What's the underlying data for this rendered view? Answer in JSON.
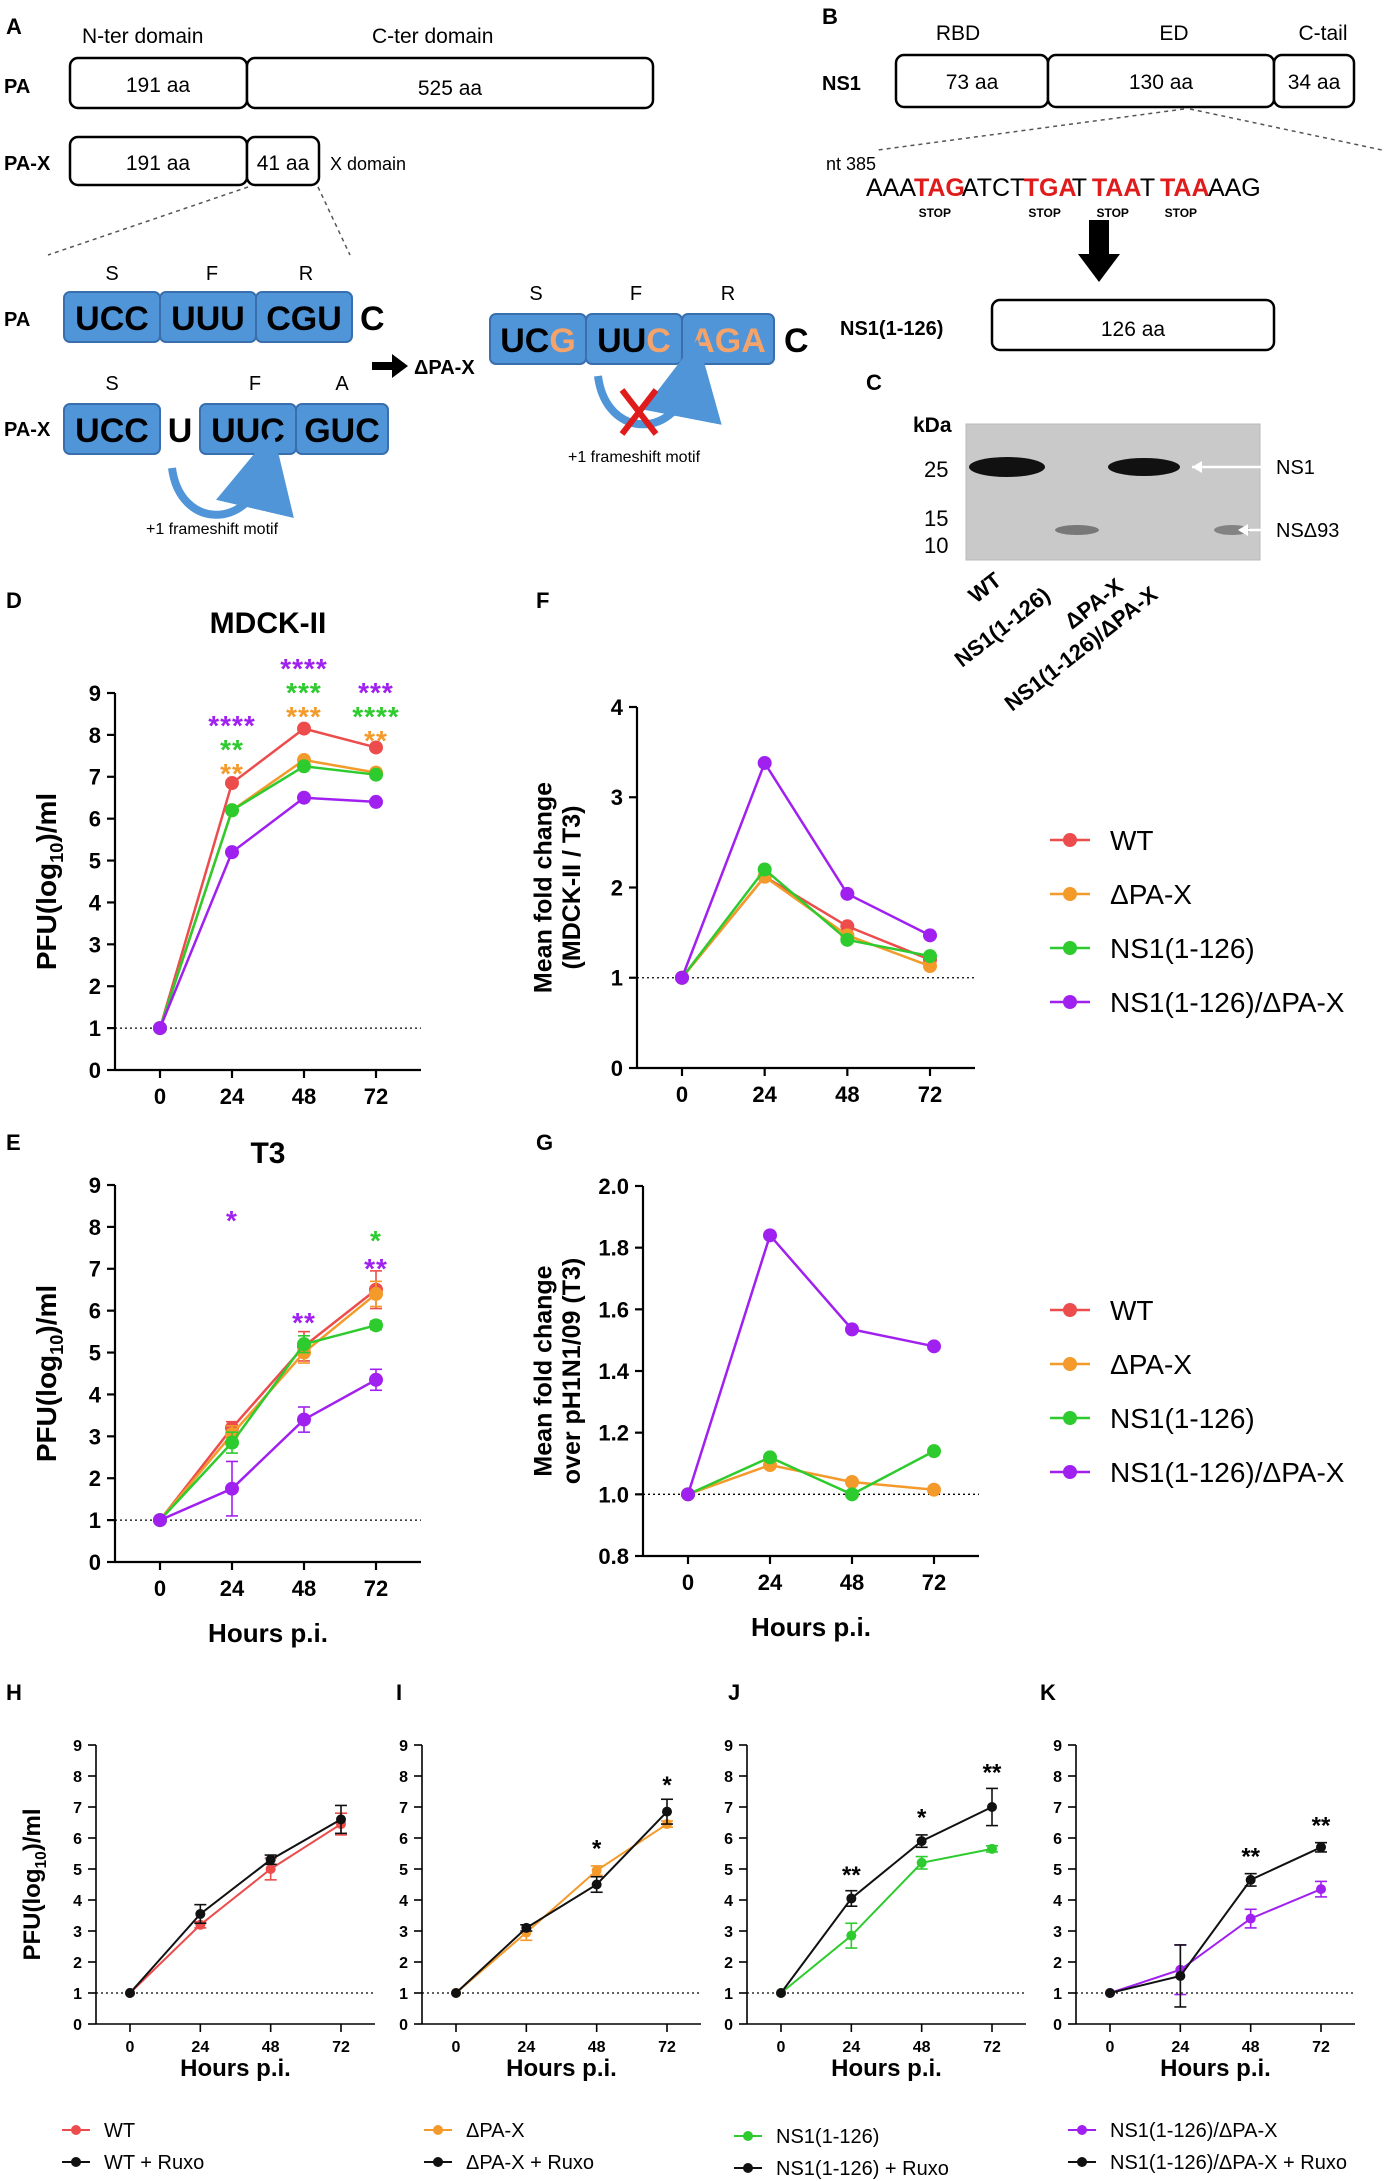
{
  "colors": {
    "wt": "#ec4c4c",
    "dpax": "#f39a2b",
    "ns1": "#2dcb2d",
    "combo": "#a020f0",
    "ruxo": "#111111",
    "codon": "#4f95d8",
    "codon_border": "#3a6fae",
    "stop": "#e01b1b",
    "mutant": "#f4a36b"
  },
  "panelA": {
    "letter": "A",
    "nter_label": "N-ter domain",
    "cter_label": "C-ter domain",
    "pa_label": "PA",
    "pa_seg1": "191 aa",
    "pa_seg2": "525 aa",
    "pax_label": "PA-X",
    "pax_seg1": "191 aa",
    "pax_seg2": "41 aa",
    "x_domain": "X domain",
    "pa_codons": [
      "UCC",
      "UUU",
      "CGU"
    ],
    "pa_codon_aa": [
      "S",
      "F",
      "R"
    ],
    "pa_trailing": "C",
    "pax_codons": [
      "UCC",
      "UUC",
      "GUC"
    ],
    "pax_codon_aa": [
      "S",
      "F",
      "A"
    ],
    "pax_extra": "U",
    "frameshift_label": "+1 frameshift motif",
    "dpax_label": "ΔPA-X",
    "dpax_codons": [
      [
        "UC",
        "G"
      ],
      [
        "UU",
        "C"
      ],
      [
        "",
        "AGA"
      ]
    ],
    "dpax_codon_aa": [
      "S",
      "F",
      "R"
    ],
    "dpax_trailing": "C",
    "dpax_frameshift_label": "+1 frameshift motif",
    "blocked_icon": "red-x-icon"
  },
  "panelB": {
    "letter": "B",
    "ns1_label": "NS1",
    "rbd_label": "RBD",
    "ed_label": "ED",
    "ctail_label": "C-tail",
    "seg1": "73 aa",
    "seg2": "130 aa",
    "seg3": "34 aa",
    "nt_label": "nt 385",
    "seq": [
      {
        "t": "AAA",
        "stop": false
      },
      {
        "t": "TAG",
        "stop": true
      },
      {
        "t": "ATCT",
        "stop": false
      },
      {
        "t": "TGA",
        "stop": true
      },
      {
        "t": "T",
        "stop": false
      },
      {
        "t": "TAA",
        "stop": true
      },
      {
        "t": "T",
        "stop": false
      },
      {
        "t": "TAA",
        "stop": true
      },
      {
        "t": "AAG",
        "stop": false
      }
    ],
    "stop_label": "STOP",
    "ns1_126_label": "NS1(1-126)",
    "ns1_126_seg": "126 aa"
  },
  "panelC": {
    "letter": "C",
    "kda": "kDa",
    "markers": [
      "25",
      "15",
      "10"
    ],
    "band_ns1": "NS1",
    "band_nsd93": "NSΔ93",
    "lanes": [
      "WT",
      "NS1(1-126)",
      "ΔPA-X",
      "NS1(1-126)/ΔPA-X"
    ]
  },
  "legend_main": [
    "WT",
    "ΔPA-X",
    "NS1(1-126)",
    "NS1(1-126)/ΔPA-X"
  ],
  "chart_data": [
    {
      "id": "D",
      "type": "line",
      "title": "MDCK-II",
      "xlabel": "",
      "ylabel": "PFU(log10)/ml",
      "x": [
        0,
        24,
        48,
        72
      ],
      "ylim": [
        0,
        9
      ],
      "yticks": [
        "0",
        "1",
        "2",
        "3",
        "4",
        "5",
        "6",
        "7",
        "8",
        "9"
      ],
      "series": [
        {
          "name": "WT",
          "values": [
            1,
            6.85,
            8.15,
            7.7
          ]
        },
        {
          "name": "ΔPA-X",
          "values": [
            1,
            6.2,
            7.4,
            7.1
          ]
        },
        {
          "name": "NS1(1-126)",
          "values": [
            1,
            6.2,
            7.25,
            7.05
          ]
        },
        {
          "name": "NS1(1-126)/ΔPA-X",
          "values": [
            1,
            5.2,
            6.5,
            6.4
          ]
        }
      ],
      "annotations": [
        {
          "x": 24,
          "lines": [
            {
              "t": "****",
              "s": "NS1(1-126)/ΔPA-X"
            },
            {
              "t": "**",
              "s": "NS1(1-126)"
            },
            {
              "t": "**",
              "s": "ΔPA-X"
            }
          ]
        },
        {
          "x": 48,
          "lines": [
            {
              "t": "****",
              "s": "NS1(1-126)/ΔPA-X"
            },
            {
              "t": "***",
              "s": "NS1(1-126)"
            },
            {
              "t": "***",
              "s": "ΔPA-X"
            }
          ]
        },
        {
          "x": 72,
          "lines": [
            {
              "t": "***",
              "s": "NS1(1-126)/ΔPA-X"
            },
            {
              "t": "****",
              "s": "NS1(1-126)"
            },
            {
              "t": "**",
              "s": "ΔPA-X"
            }
          ]
        }
      ]
    },
    {
      "id": "E",
      "type": "line",
      "title": "T3",
      "xlabel": "Hours p.i.",
      "ylabel": "PFU(log10)/ml",
      "x": [
        0,
        24,
        48,
        72
      ],
      "ylim": [
        0,
        9
      ],
      "yticks": [
        "0",
        "1",
        "2",
        "3",
        "4",
        "5",
        "6",
        "7",
        "8",
        "9"
      ],
      "series": [
        {
          "name": "WT",
          "values": [
            1,
            3.2,
            5.15,
            6.5
          ],
          "err": [
            0,
            0.15,
            0.35,
            0.45
          ]
        },
        {
          "name": "ΔPA-X",
          "values": [
            1,
            3.05,
            5.0,
            6.4
          ],
          "err": [
            0,
            0.2,
            0.25,
            0.3
          ]
        },
        {
          "name": "NS1(1-126)",
          "values": [
            1,
            2.85,
            5.2,
            5.65
          ],
          "err": [
            0,
            0.25,
            0.2,
            0.1
          ]
        },
        {
          "name": "NS1(1-126)/ΔPA-X",
          "values": [
            1,
            1.75,
            3.4,
            4.35
          ],
          "err": [
            0,
            0.65,
            0.3,
            0.25
          ]
        }
      ],
      "annotations": [
        {
          "x": 24,
          "lines": [
            {
              "t": "*",
              "s": "NS1(1-126)/ΔPA-X"
            }
          ]
        },
        {
          "x": 48,
          "lines": [
            {
              "t": "**",
              "s": "NS1(1-126)/ΔPA-X"
            }
          ]
        },
        {
          "x": 72,
          "lines": [
            {
              "t": "*",
              "s": "NS1(1-126)"
            },
            {
              "t": "**",
              "s": "NS1(1-126)/ΔPA-X"
            }
          ]
        }
      ]
    },
    {
      "id": "F",
      "type": "line",
      "title": "",
      "xlabel": "",
      "ylabel": "Mean fold change (MDCK-II / T3)",
      "x": [
        0,
        24,
        48,
        72
      ],
      "ylim": [
        0,
        4
      ],
      "yticks": [
        "0",
        "1",
        "2",
        "3",
        "4"
      ],
      "refline": 1,
      "series": [
        {
          "name": "WT",
          "values": [
            1,
            2.12,
            1.57,
            1.2
          ]
        },
        {
          "name": "ΔPA-X",
          "values": [
            1,
            2.12,
            1.47,
            1.13
          ]
        },
        {
          "name": "NS1(1-126)",
          "values": [
            1,
            2.2,
            1.42,
            1.24
          ]
        },
        {
          "name": "NS1(1-126)/ΔPA-X",
          "values": [
            1,
            3.38,
            1.93,
            1.47
          ]
        }
      ]
    },
    {
      "id": "G",
      "type": "line",
      "title": "",
      "xlabel": "Hours p.i.",
      "ylabel": "Mean fold change over pH1N1/09 (T3)",
      "x": [
        0,
        24,
        48,
        72
      ],
      "ylim": [
        0.8,
        2.0
      ],
      "yticks": [
        "0.8",
        "1.0",
        "1.2",
        "1.4",
        "1.6",
        "1.8",
        "2.0"
      ],
      "refline": 1,
      "series": [
        {
          "name": "ΔPA-X",
          "values": [
            1,
            1.095,
            1.04,
            1.015
          ]
        },
        {
          "name": "NS1(1-126)",
          "values": [
            1,
            1.12,
            1.0,
            1.14
          ]
        },
        {
          "name": "NS1(1-126)/ΔPA-X",
          "values": [
            1,
            1.84,
            1.535,
            1.48
          ]
        }
      ]
    },
    {
      "id": "H",
      "type": "line",
      "xlabel": "Hours p.i.",
      "ylabel": "PFU(log10)/ml",
      "x": [
        0,
        24,
        48,
        72
      ],
      "ylim": [
        0,
        9
      ],
      "yticks": [
        "0",
        "1",
        "2",
        "3",
        "4",
        "5",
        "6",
        "7",
        "8",
        "9"
      ],
      "refline": 1,
      "series": [
        {
          "name": "WT",
          "values": [
            1,
            3.2,
            5.0,
            6.45
          ],
          "err": [
            0,
            0.1,
            0.35,
            0.35
          ]
        },
        {
          "name": "WT + Ruxo",
          "values": [
            1,
            3.55,
            5.3,
            6.6
          ],
          "err": [
            0,
            0.3,
            0.15,
            0.45
          ]
        }
      ],
      "legend": [
        "WT",
        "WT + Ruxo"
      ],
      "annotations": []
    },
    {
      "id": "I",
      "type": "line",
      "xlabel": "Hours p.i.",
      "ylabel": "",
      "x": [
        0,
        24,
        48,
        72
      ],
      "ylim": [
        0,
        9
      ],
      "yticks": [
        "0",
        "1",
        "2",
        "3",
        "4",
        "5",
        "6",
        "7",
        "8",
        "9"
      ],
      "refline": 1,
      "series": [
        {
          "name": "ΔPA-X",
          "values": [
            1,
            2.95,
            4.95,
            6.45
          ],
          "err": [
            0,
            0.25,
            0.15,
            0.1
          ]
        },
        {
          "name": "ΔPA-X + Ruxo",
          "values": [
            1,
            3.1,
            4.5,
            6.85
          ],
          "err": [
            0,
            0.1,
            0.25,
            0.4
          ]
        }
      ],
      "legend": [
        "ΔPA-X",
        "ΔPA-X + Ruxo"
      ],
      "annotations": [
        {
          "x": 48,
          "t": "*",
          "y": 5.4
        },
        {
          "x": 72,
          "t": "*",
          "y": 7.45
        }
      ]
    },
    {
      "id": "J",
      "type": "line",
      "xlabel": "Hours p.i.",
      "ylabel": "",
      "x": [
        0,
        24,
        48,
        72
      ],
      "ylim": [
        0,
        9
      ],
      "yticks": [
        "0",
        "1",
        "2",
        "3",
        "4",
        "5",
        "6",
        "7",
        "8",
        "9"
      ],
      "refline": 1,
      "series": [
        {
          "name": "NS1(1-126)",
          "values": [
            1,
            2.85,
            5.2,
            5.65
          ],
          "err": [
            0,
            0.4,
            0.2,
            0.1
          ]
        },
        {
          "name": "NS1(1-126) + Ruxo",
          "values": [
            1,
            4.05,
            5.9,
            7.0
          ],
          "err": [
            0,
            0.25,
            0.2,
            0.6
          ]
        }
      ],
      "legend": [
        "NS1(1-126)",
        "NS1(1-126) + Ruxo"
      ],
      "annotations": [
        {
          "x": 24,
          "t": "**",
          "y": 4.55
        },
        {
          "x": 48,
          "t": "*",
          "y": 6.4
        },
        {
          "x": 72,
          "t": "**",
          "y": 7.85
        }
      ]
    },
    {
      "id": "K",
      "type": "line",
      "xlabel": "Hours p.i.",
      "ylabel": "",
      "x": [
        0,
        24,
        48,
        72
      ],
      "ylim": [
        0,
        9
      ],
      "yticks": [
        "0",
        "1",
        "2",
        "3",
        "4",
        "5",
        "6",
        "7",
        "8",
        "9"
      ],
      "refline": 1,
      "series": [
        {
          "name": "NS1(1-126)/ΔPA-X",
          "values": [
            1,
            1.75,
            3.4,
            4.35
          ],
          "err": [
            0,
            0.8,
            0.3,
            0.25
          ]
        },
        {
          "name": "NS1(1-126)/ΔPA-X + Ruxo",
          "values": [
            1,
            1.55,
            4.65,
            5.7
          ],
          "err": [
            0,
            1.0,
            0.2,
            0.15
          ]
        }
      ],
      "legend": [
        "NS1(1-126)/ΔPA-X",
        "NS1(1-126)/ΔPA-X + Ruxo"
      ],
      "annotations": [
        {
          "x": 48,
          "t": "**",
          "y": 5.15
        },
        {
          "x": 72,
          "t": "**",
          "y": 6.15
        }
      ]
    }
  ]
}
